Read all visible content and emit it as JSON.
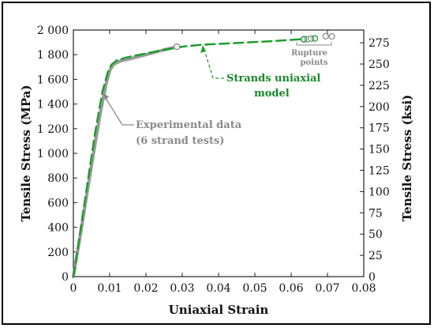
{
  "chart_data": {
    "type": "line",
    "xlabel": "Uniaxial Strain",
    "ylabel": "Tensile Stress (MPa)",
    "y2label": "Tensile Stress (ksi)",
    "xlim": [
      0,
      0.08
    ],
    "ylim": [
      0,
      2000
    ],
    "y2lim": [
      0,
      290
    ],
    "x_ticks": [
      "0",
      "0.01",
      "0.02",
      "0.03",
      "0.04",
      "0.05",
      "0.06",
      "0.07",
      "0.08"
    ],
    "y_ticks": [
      "0",
      "200",
      "400",
      "600",
      "800",
      "1 000",
      "1 200",
      "1 400",
      "1 600",
      "1 800",
      "2 000"
    ],
    "y2_ticks": [
      "0",
      "25",
      "50",
      "75",
      "100",
      "125",
      "150",
      "175",
      "200",
      "225",
      "250",
      "275"
    ],
    "series": [
      {
        "name": "Experimental data",
        "color": "#9a9a9a",
        "style": "solid",
        "x": [
          0,
          0.002,
          0.004,
          0.006,
          0.0075,
          0.009,
          0.01,
          0.011,
          0.013,
          0.016,
          0.02,
          0.025,
          0.028
        ],
        "y": [
          0,
          350,
          720,
          1080,
          1340,
          1560,
          1670,
          1720,
          1750,
          1770,
          1800,
          1840,
          1860
        ]
      },
      {
        "name": "Strands uniaxial model",
        "color": "#1e9e2e",
        "style": "dashed",
        "x": [
          0,
          0.002,
          0.004,
          0.006,
          0.008,
          0.0095,
          0.0105,
          0.012,
          0.015,
          0.02,
          0.025,
          0.03,
          0.035,
          0.045,
          0.055,
          0.065
        ],
        "y": [
          0,
          390,
          780,
          1170,
          1500,
          1660,
          1720,
          1755,
          1780,
          1810,
          1840,
          1865,
          1880,
          1895,
          1910,
          1930
        ]
      }
    ],
    "rupture_points": {
      "gray": [
        [
          0.0285,
          1865
        ],
        [
          0.0635,
          1925
        ],
        [
          0.0645,
          1925
        ],
        [
          0.0655,
          1930
        ],
        [
          0.0695,
          1950
        ],
        [
          0.0712,
          1948
        ]
      ],
      "green": [
        [
          0.0635,
          1925
        ],
        [
          0.0665,
          1932
        ]
      ]
    },
    "annotations": {
      "experimental_line1": "Experimental data",
      "experimental_line2": "(6 strand tests)",
      "model_line1": "Strands uniaxial",
      "model_line2": "model",
      "rupture_line1": "Rupture",
      "rupture_line2": "points"
    },
    "grid": false
  }
}
